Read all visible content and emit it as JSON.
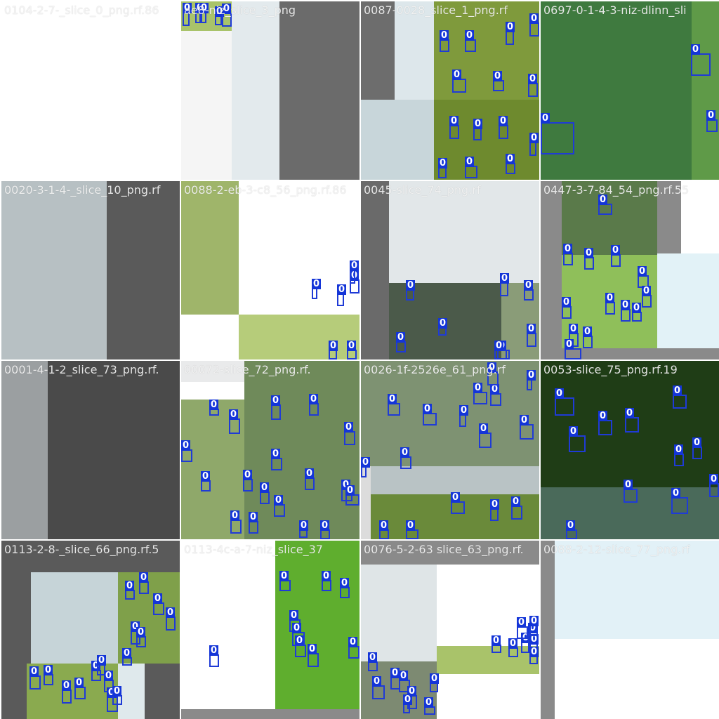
{
  "grid": {
    "tiles": [
      {
        "title": "0104-2-7-_slice_0_png.rf.86",
        "regions": [
          {
            "c": "#ffffff"
          }
        ],
        "boxes": []
      },
      {
        "title": "ae8-niz_slice_3_png",
        "regions": [
          {
            "c": "#f5f5f5"
          },
          {
            "c": "#e3eaed"
          },
          {
            "c": "#6b6b6b"
          },
          {
            "c": "#a9c36a"
          }
        ],
        "boxes": [
          {
            "label": "0"
          },
          {
            "label": "0"
          },
          {
            "label": "0"
          },
          {
            "label": "0"
          },
          {
            "label": "0"
          }
        ]
      },
      {
        "title": "0087-0028_slice_1_png.rf",
        "regions": [
          {
            "c": "#6d6d6d"
          },
          {
            "c": "#dde7eb"
          },
          {
            "c": "#7f9a3c"
          },
          {
            "c": "#c8d6da"
          },
          {
            "c": "#6e8a2e"
          }
        ],
        "boxes": [
          {
            "label": "0"
          },
          {
            "label": "0"
          },
          {
            "label": "0"
          },
          {
            "label": "0"
          },
          {
            "label": "0"
          },
          {
            "label": "0"
          },
          {
            "label": "0"
          },
          {
            "label": "0"
          },
          {
            "label": "0"
          },
          {
            "label": "0"
          },
          {
            "label": "0"
          },
          {
            "label": "0"
          },
          {
            "label": "0"
          },
          {
            "label": "0"
          }
        ]
      },
      {
        "title": "0697-0-1-4-3-niz-dlinn_sli",
        "regions": [
          {
            "c": "#3f7a3f"
          },
          {
            "c": "#5f9a48"
          }
        ],
        "boxes": [
          {
            "label": "0"
          },
          {
            "label": "0"
          },
          {
            "label": "0"
          }
        ]
      },
      {
        "title": "0020-3-1-4-_slice_10_png.rf",
        "regions": [
          {
            "c": "#b7c0c3"
          },
          {
            "c": "#5a5a5a"
          }
        ],
        "boxes": []
      },
      {
        "title": "0088-2-eb-3-c8_56_png.rf.86",
        "regions": [
          {
            "c": "#9fb56a"
          },
          {
            "c": "#ffffff"
          },
          {
            "c": "#b6cc7a"
          }
        ],
        "boxes": [
          {
            "label": "0"
          },
          {
            "label": "0"
          },
          {
            "label": "0"
          },
          {
            "label": "0"
          },
          {
            "label": "0"
          },
          {
            "label": "0"
          }
        ]
      },
      {
        "title": "0045-slice_74_png.rf",
        "regions": [
          {
            "c": "#6a6a6a"
          },
          {
            "c": "#e2e7e9"
          },
          {
            "c": "#4b5a4a"
          },
          {
            "c": "#8a9c78"
          }
        ],
        "boxes": [
          {
            "label": "0"
          },
          {
            "label": "0"
          },
          {
            "label": "0"
          },
          {
            "label": "0"
          },
          {
            "label": "0"
          },
          {
            "label": "0"
          },
          {
            "label": "0"
          },
          {
            "label": "0"
          }
        ]
      },
      {
        "title": "0447-3-7-84_54_png.rf.55",
        "regions": [
          {
            "c": "#8a8a8a"
          },
          {
            "c": "#5a7a4a"
          },
          {
            "c": "#8fbf5a"
          },
          {
            "c": "#e2f2f7"
          },
          {
            "c": "#ffffff"
          }
        ],
        "boxes": [
          {
            "label": "0"
          },
          {
            "label": "0"
          },
          {
            "label": "0"
          },
          {
            "label": "0"
          },
          {
            "label": "0"
          },
          {
            "label": "0"
          },
          {
            "label": "0"
          },
          {
            "label": "0"
          },
          {
            "label": "0"
          },
          {
            "label": "0"
          },
          {
            "label": "0"
          },
          {
            "label": "0"
          },
          {
            "label": "0"
          }
        ]
      },
      {
        "title": "0001-4-1-2_slice_73_png.rf.",
        "regions": [
          {
            "c": "#9b9fa1"
          },
          {
            "c": "#4a4a4a"
          }
        ],
        "boxes": []
      },
      {
        "title": "00072-slice_72_png.rf.",
        "regions": [
          {
            "c": "#e9eaeb"
          },
          {
            "c": "#8fa86a"
          },
          {
            "c": "#6f8a5a"
          }
        ],
        "boxes": [
          {
            "label": "0"
          },
          {
            "label": "0"
          },
          {
            "label": "0"
          },
          {
            "label": "0"
          },
          {
            "label": "0"
          },
          {
            "label": "0"
          },
          {
            "label": "0"
          },
          {
            "label": "0"
          },
          {
            "label": "0"
          },
          {
            "label": "0"
          },
          {
            "label": "0"
          },
          {
            "label": "0"
          },
          {
            "label": "0"
          },
          {
            "label": "0"
          },
          {
            "label": "0"
          },
          {
            "label": "0"
          },
          {
            "label": "0"
          },
          {
            "label": "0"
          }
        ]
      },
      {
        "title": "0026-1f-2526e_61_png.rf",
        "regions": [
          {
            "c": "#7e9272"
          },
          {
            "c": "#b9c3c5"
          },
          {
            "c": "#6a8a3a"
          },
          {
            "c": "#dcdcdc"
          }
        ],
        "boxes": [
          {
            "label": "0"
          },
          {
            "label": "0"
          },
          {
            "label": "0"
          },
          {
            "label": "0"
          },
          {
            "label": "0"
          },
          {
            "label": "0"
          },
          {
            "label": "0"
          },
          {
            "label": "0"
          },
          {
            "label": "0"
          },
          {
            "label": "0"
          },
          {
            "label": "0"
          },
          {
            "label": "0"
          },
          {
            "label": "0"
          },
          {
            "label": "0"
          },
          {
            "label": "0"
          },
          {
            "label": "0"
          }
        ]
      },
      {
        "title": "0053-slice_75_png.rf.19",
        "regions": [
          {
            "c": "#2e5a1f"
          },
          {
            "c": "#1f3d16"
          },
          {
            "c": "#4a6a5a"
          }
        ],
        "boxes": [
          {
            "label": "0"
          },
          {
            "label": "0"
          },
          {
            "label": "0"
          },
          {
            "label": "0"
          },
          {
            "label": "0"
          },
          {
            "label": "0"
          },
          {
            "label": "0"
          },
          {
            "label": "0"
          },
          {
            "label": "0"
          },
          {
            "label": "0"
          },
          {
            "label": "0"
          }
        ]
      },
      {
        "title": "0113-2-8-_slice_66_png.rf.5",
        "regions": [
          {
            "c": "#5a5a5a"
          },
          {
            "c": "#c6d4d8"
          },
          {
            "c": "#7fa04a"
          },
          {
            "c": "#8aaa4f"
          },
          {
            "c": "#dfe9ec"
          }
        ],
        "boxes": [
          {
            "label": "0"
          },
          {
            "label": "0"
          },
          {
            "label": "0"
          },
          {
            "label": "0"
          },
          {
            "label": "0"
          },
          {
            "label": "0"
          },
          {
            "label": "0"
          },
          {
            "label": "0"
          },
          {
            "label": "0"
          },
          {
            "label": "0"
          },
          {
            "label": "0"
          },
          {
            "label": "0"
          },
          {
            "label": "0"
          },
          {
            "label": "0"
          },
          {
            "label": "0"
          },
          {
            "label": "0"
          }
        ]
      },
      {
        "title": "0113-4c-a-7-niz_slice_37",
        "regions": [
          {
            "c": "#ffffff"
          },
          {
            "c": "#5fae2e"
          },
          {
            "c": "#8a8a8a"
          }
        ],
        "boxes": [
          {
            "label": "0"
          },
          {
            "label": "0"
          },
          {
            "label": "0"
          },
          {
            "label": "0"
          },
          {
            "label": "0"
          },
          {
            "label": "0"
          },
          {
            "label": "0"
          },
          {
            "label": "0"
          },
          {
            "label": "0"
          }
        ]
      },
      {
        "title": "0076-5-2-63 slice_63_png.rf.",
        "regions": [
          {
            "c": "#dfe5e7"
          },
          {
            "c": "#ffffff"
          },
          {
            "c": "#a9c36a"
          },
          {
            "c": "#7d8a72"
          },
          {
            "c": "#8a8a8a"
          }
        ],
        "boxes": [
          {
            "label": "0"
          },
          {
            "label": "0"
          },
          {
            "label": "0"
          },
          {
            "label": "0"
          },
          {
            "label": "0"
          },
          {
            "label": "0"
          },
          {
            "label": "0"
          },
          {
            "label": "0"
          },
          {
            "label": "0"
          },
          {
            "label": "0"
          },
          {
            "label": "0"
          },
          {
            "label": "0"
          },
          {
            "label": "0"
          },
          {
            "label": "0"
          },
          {
            "label": "0"
          },
          {
            "label": "0"
          }
        ]
      },
      {
        "title": "0088-2-12-slice_77_png.rf",
        "regions": [
          {
            "c": "#8a8a8a"
          },
          {
            "c": "#e2f1f7"
          },
          {
            "c": "#ffffff"
          }
        ],
        "boxes": []
      }
    ]
  }
}
